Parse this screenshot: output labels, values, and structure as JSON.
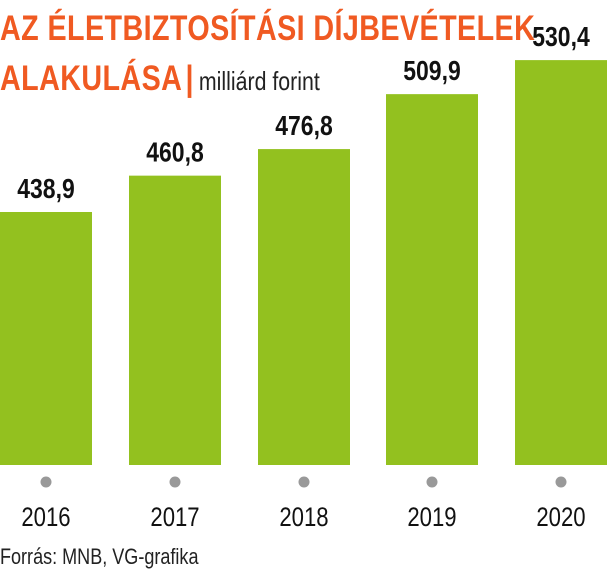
{
  "title": {
    "line1": "AZ ÉLETBIZTOSÍTÁSI DÍJBEVÉTELEK",
    "line2": "ALAKULÁSA",
    "separator": "|",
    "unit": "milliárd forint"
  },
  "source": "Forrás: MNB, VG-grafika",
  "colors": {
    "title": "#f05a22",
    "bar": "#93c11f",
    "marker": "#999999",
    "text": "#111111"
  },
  "chart_data": {
    "type": "bar",
    "title": "AZ ÉLETBIZTOSÍTÁSI DÍJBEVÉTELEK ALAKULÁSA",
    "ylabel": "milliárd forint",
    "categories": [
      "2016",
      "2017",
      "2018",
      "2019",
      "2020"
    ],
    "values": [
      438.9,
      460.8,
      476.8,
      509.9,
      530.4
    ],
    "value_labels": [
      "438,9",
      "460,8",
      "476,8",
      "509,9",
      "530,4"
    ],
    "grid": false,
    "legend": "none"
  }
}
